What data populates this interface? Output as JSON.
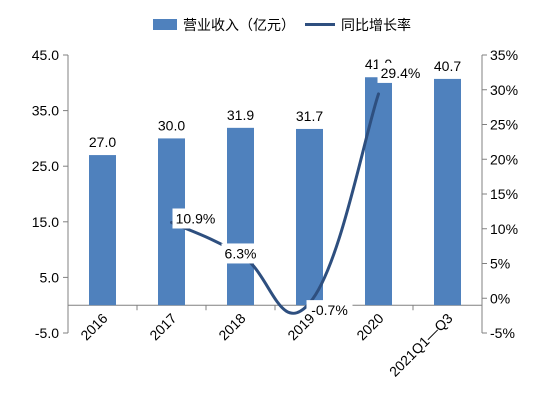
{
  "chart_data": {
    "type": "bar+line",
    "categories": [
      "2016",
      "2017",
      "2018",
      "2019",
      "2020",
      "2021Q1—Q3"
    ],
    "series": [
      {
        "name": "营业收入（亿元）",
        "type": "bar",
        "axis": "left",
        "values": [
          27.0,
          30.0,
          31.9,
          31.7,
          41.0,
          40.7
        ],
        "labels": [
          "27.0",
          "30.0",
          "31.9",
          "31.7",
          "41.0",
          "40.7"
        ],
        "color": "#4F81BD"
      },
      {
        "name": "同比增长率",
        "type": "line",
        "axis": "right",
        "values": [
          null,
          10.9,
          6.3,
          -0.7,
          29.4,
          null
        ],
        "labels": [
          "",
          "10.9%",
          "6.3%",
          "-0.7%",
          "29.4%",
          ""
        ],
        "color": "#2E4F7F"
      }
    ],
    "y_left": {
      "ylim": [
        -5,
        45
      ],
      "ticks": [
        45,
        35,
        25,
        15,
        5,
        -5
      ],
      "tick_labels": [
        "45.0",
        "35.0",
        "25.0",
        "15.0",
        "5.0",
        "-5.0"
      ]
    },
    "y_right": {
      "ylim": [
        -5,
        35
      ],
      "ticks": [
        35,
        30,
        25,
        20,
        15,
        10,
        5,
        0,
        -5
      ],
      "tick_labels": [
        "35%",
        "30%",
        "25%",
        "20%",
        "15%",
        "10%",
        "5%",
        "0%",
        "-5%"
      ]
    },
    "legend": {
      "placement": "top-center"
    },
    "grid": false
  }
}
